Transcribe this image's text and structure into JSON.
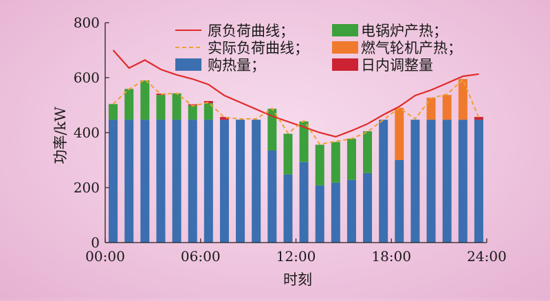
{
  "chart_data": {
    "type": "bar",
    "title": "",
    "xlabel": "时刻",
    "ylabel": "功率/kW",
    "ylim": [
      0,
      800
    ],
    "xlim": [
      0,
      24
    ],
    "y_ticks": [
      0,
      200,
      400,
      600,
      800
    ],
    "x_ticks": [
      "00:00",
      "06:00",
      "12:00",
      "18:00",
      "24:00"
    ],
    "stacked": true,
    "legend_placement": "top",
    "categories": [
      "0",
      "1",
      "2",
      "3",
      "4",
      "5",
      "6",
      "7",
      "8",
      "9",
      "10",
      "11",
      "12",
      "13",
      "14",
      "15",
      "16",
      "17",
      "18",
      "19",
      "20",
      "21",
      "22",
      "23"
    ],
    "series": [
      {
        "name": "购热量；",
        "kind": "bar",
        "color": "#3b6fb0",
        "values": [
          447,
          447,
          447,
          447,
          447,
          447,
          447,
          447,
          447,
          447,
          335,
          248,
          293,
          208,
          218,
          228,
          253,
          447,
          300,
          447,
          447,
          447,
          447,
          447
        ]
      },
      {
        "name": "电锅炉产热；",
        "kind": "bar",
        "color": "#3ca03c",
        "values": [
          57,
          112,
          143,
          90,
          96,
          52,
          60,
          0,
          0,
          0,
          152,
          148,
          148,
          148,
          148,
          150,
          152,
          0,
          0,
          0,
          0,
          0,
          0,
          0
        ]
      },
      {
        "name": "燃气轮机产热；",
        "kind": "bar",
        "color": "#ef7a2e",
        "values": [
          0,
          0,
          0,
          0,
          0,
          0,
          0,
          0,
          0,
          0,
          0,
          0,
          0,
          0,
          0,
          0,
          0,
          0,
          190,
          0,
          80,
          90,
          148,
          0
        ]
      },
      {
        "name": "日内调整量",
        "kind": "bar",
        "color": "#cc2233",
        "values": [
          0,
          0,
          0,
          5,
          0,
          4,
          8,
          10,
          0,
          0,
          0,
          0,
          0,
          0,
          0,
          0,
          0,
          0,
          0,
          0,
          0,
          0,
          0,
          10
        ]
      },
      {
        "name": "原负荷曲线；",
        "kind": "line",
        "color": "#e02a2a",
        "style": "solid",
        "x": [
          0,
          1,
          2,
          3,
          4,
          5,
          6,
          7,
          8,
          9,
          10,
          11,
          12,
          13,
          14,
          15,
          16,
          17,
          18,
          19,
          20,
          21,
          22,
          23
        ],
        "values": [
          700,
          635,
          664,
          630,
          610,
          595,
          575,
          535,
          510,
          485,
          460,
          440,
          420,
          400,
          385,
          407,
          432,
          465,
          495,
          535,
          555,
          580,
          605,
          613
        ]
      },
      {
        "name": "实际负荷曲线；",
        "kind": "line",
        "color": "#f0a030",
        "style": "dashed",
        "x": [
          0,
          1,
          2,
          3,
          4,
          5,
          6,
          7,
          8,
          9,
          10,
          11,
          12,
          13,
          14,
          15,
          16,
          17,
          18,
          19,
          20,
          21,
          22,
          23
        ],
        "values": [
          505,
          558,
          593,
          540,
          543,
          497,
          510,
          455,
          450,
          450,
          488,
          398,
          443,
          358,
          368,
          378,
          403,
          447,
          490,
          450,
          525,
          540,
          593,
          455
        ]
      }
    ]
  }
}
